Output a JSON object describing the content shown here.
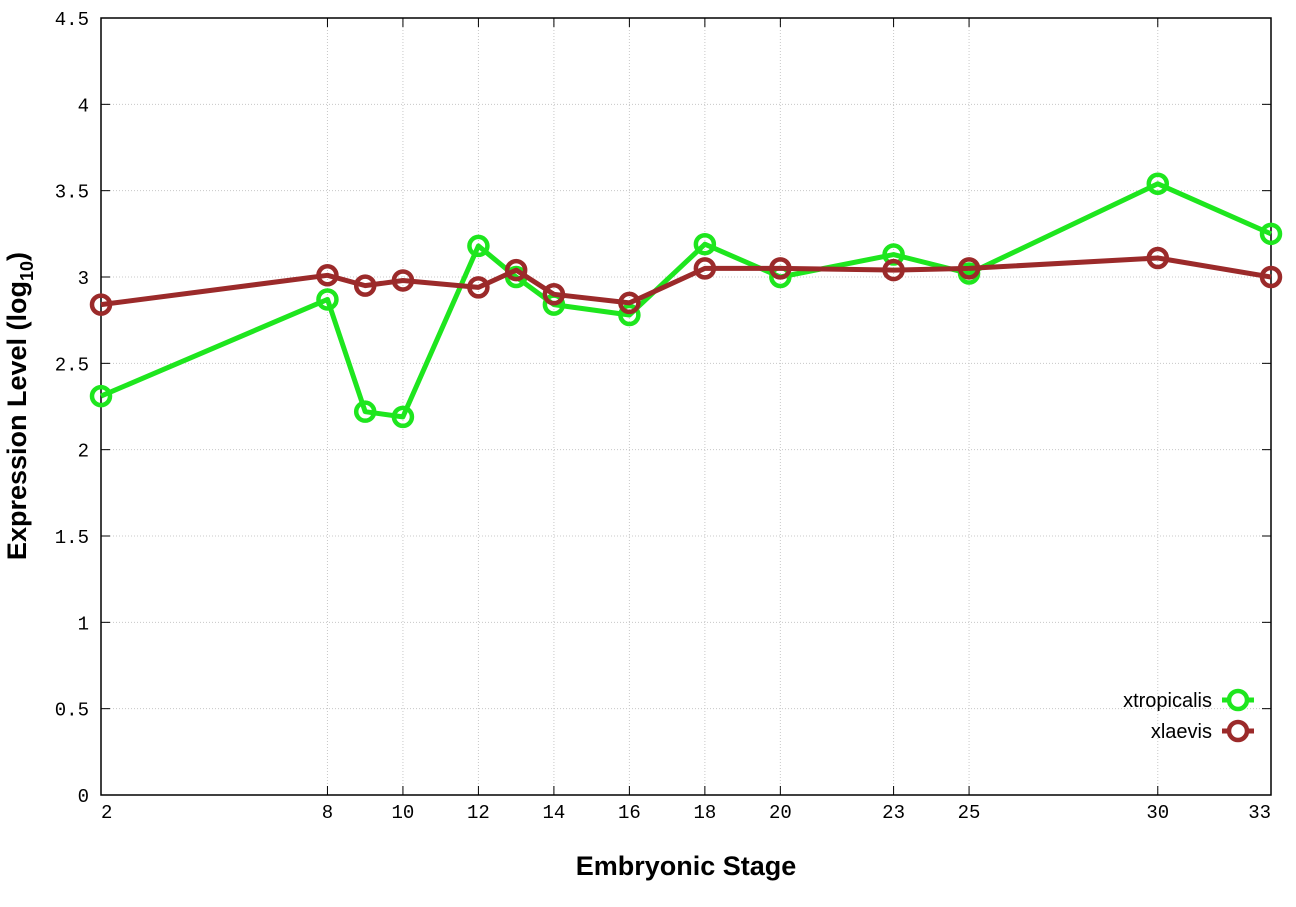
{
  "chart_data": {
    "type": "line",
    "xlabel": "Embryonic Stage",
    "ylabel_main": "Expression Level (log",
    "ylabel_sub": "10",
    "ylabel_close": ")",
    "x_ticks": [
      "2",
      "8",
      "10",
      "12",
      "14",
      "16",
      "18",
      "20",
      "23",
      "25",
      "30",
      "33"
    ],
    "x_tick_values": [
      2,
      8,
      10,
      12,
      14,
      16,
      18,
      20,
      23,
      25,
      30,
      33
    ],
    "y_ticks": [
      "0",
      "0.5",
      "1",
      "1.5",
      "2",
      "2.5",
      "3",
      "3.5",
      "4",
      "4.5"
    ],
    "y_tick_values": [
      0,
      0.5,
      1,
      1.5,
      2,
      2.5,
      3,
      3.5,
      4,
      4.5
    ],
    "xlim": [
      2,
      33
    ],
    "ylim": [
      0,
      4.5
    ],
    "grid": true,
    "legend_position": "bottom-right",
    "series": [
      {
        "name": "xtropicalis",
        "color": "#1ee61e",
        "x": [
          2,
          8,
          9,
          10,
          12,
          13,
          14,
          16,
          18,
          20,
          23,
          25,
          30,
          33
        ],
        "y": [
          2.31,
          2.87,
          2.22,
          2.19,
          3.18,
          3.0,
          2.84,
          2.78,
          3.19,
          3.0,
          3.13,
          3.02,
          3.54,
          3.25
        ]
      },
      {
        "name": "xlaevis",
        "color": "#9b2a2a",
        "x": [
          2,
          8,
          9,
          10,
          12,
          13,
          14,
          16,
          18,
          20,
          23,
          25,
          30,
          33
        ],
        "y": [
          2.84,
          3.01,
          2.95,
          2.98,
          2.94,
          3.04,
          2.9,
          2.85,
          3.05,
          3.05,
          3.04,
          3.05,
          3.11,
          3.0
        ]
      }
    ]
  }
}
